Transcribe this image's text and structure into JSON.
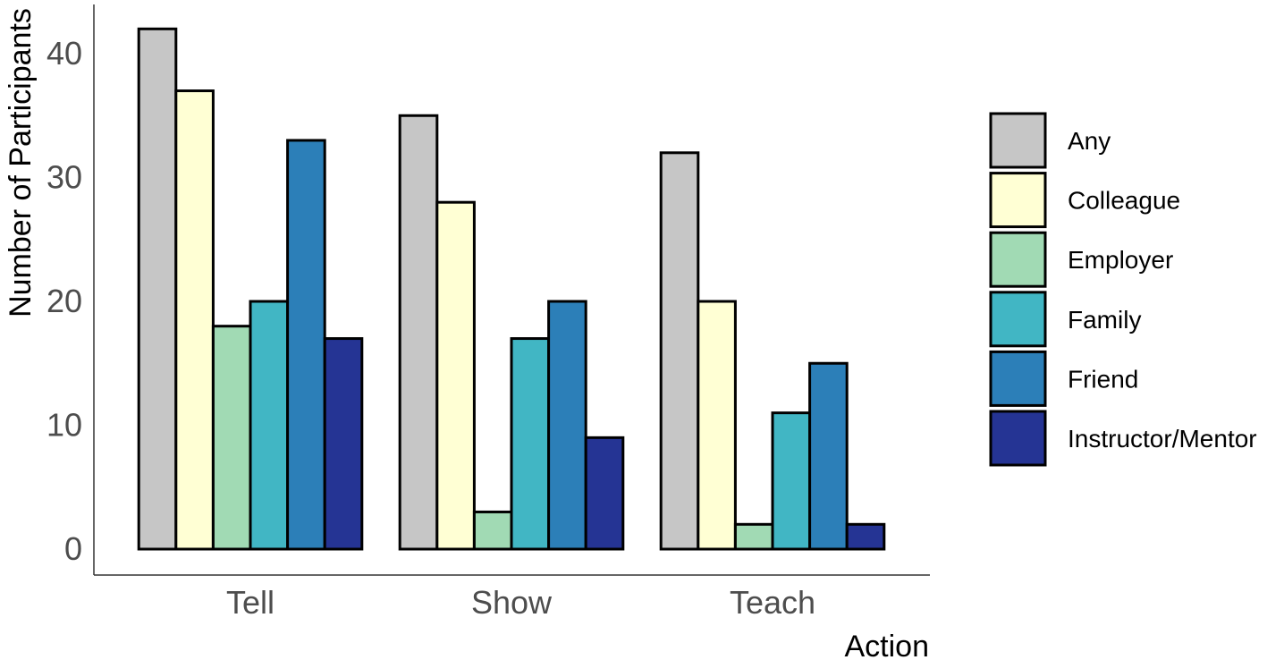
{
  "chart_data": {
    "type": "bar",
    "title": "",
    "xlabel": "Action",
    "ylabel": "Number of Participants",
    "categories": [
      "Tell",
      "Show",
      "Teach"
    ],
    "ylim": [
      0,
      44
    ],
    "yticks": [
      0,
      10,
      20,
      30,
      40
    ],
    "grid": false,
    "legend_position": "right",
    "series": [
      {
        "name": "Any",
        "color": "#c6c6c6",
        "values": [
          42,
          35,
          32
        ]
      },
      {
        "name": "Colleague",
        "color": "#ffffd4",
        "values": [
          37,
          28,
          20
        ]
      },
      {
        "name": "Employer",
        "color": "#a1dab4",
        "values": [
          18,
          3,
          2
        ]
      },
      {
        "name": "Family",
        "color": "#41b6c4",
        "values": [
          20,
          17,
          11
        ]
      },
      {
        "name": "Friend",
        "color": "#2c7fb8",
        "values": [
          33,
          20,
          15
        ]
      },
      {
        "name": "Instructor/Mentor",
        "color": "#253494",
        "values": [
          17,
          9,
          2
        ]
      }
    ]
  }
}
